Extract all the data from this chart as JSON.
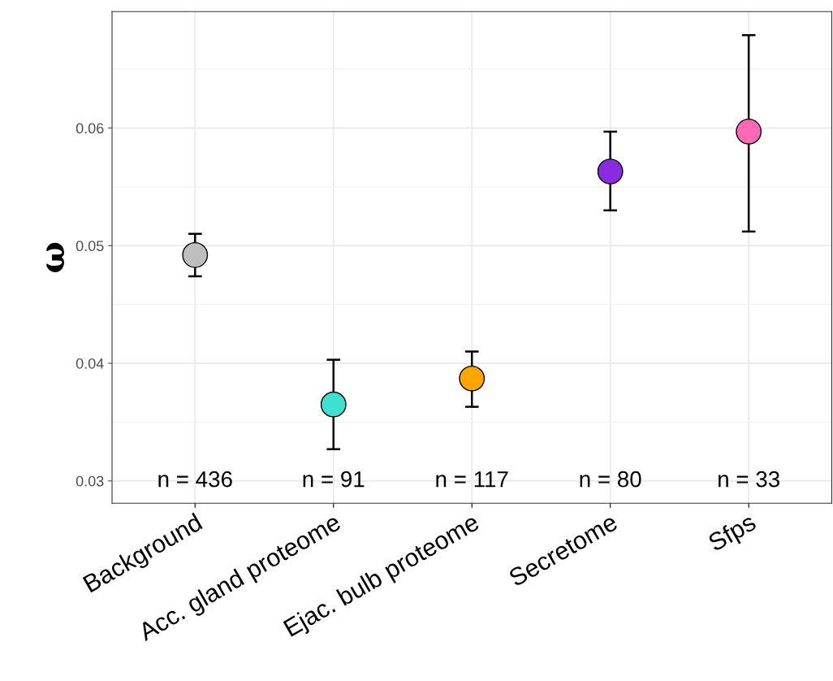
{
  "chart_data": {
    "type": "scatter",
    "ylabel": "ω",
    "categories": [
      "Background",
      "Acc. gland proteome",
      "Ejac. bulb proteome",
      "Secretome",
      "Sfps"
    ],
    "values": [
      0.0492,
      0.0365,
      0.0387,
      0.0563,
      0.0597
    ],
    "errors": [
      [
        0.0474,
        0.051
      ],
      [
        0.0327,
        0.0403
      ],
      [
        0.0363,
        0.041
      ],
      [
        0.053,
        0.0597
      ],
      [
        0.0512,
        0.0679
      ]
    ],
    "colors": [
      "#bebebe",
      "#40e0d0",
      "#ffa500",
      "#8a2be2",
      "#ff69b4"
    ],
    "ylim": [
      0.0281,
      0.0699
    ],
    "yticks": [
      {
        "value": 0.03,
        "label": "0.03"
      },
      {
        "value": 0.04,
        "label": "0.04"
      },
      {
        "value": 0.05,
        "label": "0.05"
      },
      {
        "value": 0.06,
        "label": "0.06"
      }
    ],
    "grid": true,
    "marker": "circle",
    "annotations": [
      "n = 436",
      "n = 91",
      "n = 117",
      "n = 80",
      "n = 33"
    ]
  }
}
